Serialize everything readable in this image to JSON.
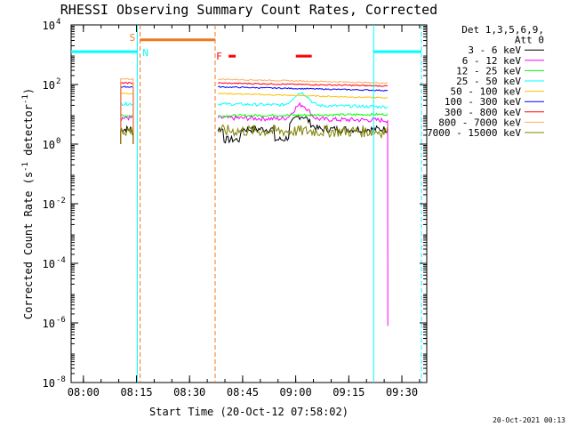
{
  "chart_data": {
    "type": "line",
    "title": "RHESSI Observing Summary Count Rates, Corrected",
    "xlabel": "Start Time (20-Oct-12 07:58:02)",
    "ylabel_parts": [
      "Corrected Count Rate (s",
      "-1",
      " detector",
      "-1",
      ")"
    ],
    "x_unit": "minutes since 07:58:02",
    "xlim": [
      -1.5,
      99
    ],
    "ylog": true,
    "ylim_exp": [
      -8,
      4
    ],
    "x_ticks": [
      {
        "x": 1.97,
        "label": "08:00"
      },
      {
        "x": 16.97,
        "label": "08:15"
      },
      {
        "x": 31.97,
        "label": "08:30"
      },
      {
        "x": 46.97,
        "label": "08:45"
      },
      {
        "x": 61.97,
        "label": "09:00"
      },
      {
        "x": 76.97,
        "label": "09:15"
      },
      {
        "x": 91.97,
        "label": "09:30"
      }
    ],
    "y_ticks": [
      {
        "exp": 4,
        "base": "10",
        "sup": "4"
      },
      {
        "exp": 2,
        "base": "10",
        "sup": "2"
      },
      {
        "exp": 0,
        "base": "10",
        "sup": "0"
      },
      {
        "exp": -2,
        "base": "10",
        "sup": "-2"
      },
      {
        "exp": -4,
        "base": "10",
        "sup": "-4"
      },
      {
        "exp": -6,
        "base": "10",
        "sup": "-6"
      },
      {
        "exp": -8,
        "base": "10",
        "sup": "-8"
      }
    ],
    "legend": {
      "header": [
        "Det 1,3,5,6,9,",
        "Att 0"
      ],
      "placement": "right"
    },
    "segments": [
      [
        12.5,
        16.0
      ],
      [
        40.0,
        88.0
      ]
    ],
    "series": [
      {
        "name": "3 - 6 keV",
        "color": "#000000",
        "level": [
          0.5,
          0.5
        ],
        "peak": {
          "x": 63.5,
          "amp": 1.8,
          "w": 2.5
        },
        "dips": [
          [
            44,
            2.4
          ],
          [
            58,
            2.2
          ]
        ],
        "noise": 0.12
      },
      {
        "name": "6 - 12 keV",
        "color": "#ff00ff",
        "level": [
          0.88,
          0.8
        ],
        "peak": {
          "x": 63.5,
          "amp": 2.0,
          "w": 2.4
        },
        "noise": 0.08
      },
      {
        "name": "12 - 25 keV",
        "color": "#00ff00",
        "level": [
          0.95,
          1.0
        ],
        "noise": 0.04
      },
      {
        "name": "25 - 50 keV",
        "color": "#00ffff",
        "level": [
          1.35,
          1.25
        ],
        "peak": {
          "x": 63.5,
          "amp": 1.6,
          "w": 2.5
        },
        "noise": 0.05
      },
      {
        "name": "50 - 100 keV",
        "color": "#ffc000",
        "level": [
          1.7,
          1.55
        ],
        "noise": 0.02
      },
      {
        "name": "100 - 300 keV",
        "color": "#0000ff",
        "level": [
          1.92,
          1.8
        ],
        "noise": 0.02
      },
      {
        "name": "300 - 800 keV",
        "color": "#ff0000",
        "level": [
          2.05,
          1.95
        ],
        "noise": 0.02
      },
      {
        "name": "800 - 7000 keV",
        "color": "#ffaa66",
        "level": [
          2.18,
          2.05
        ],
        "noise": 0.02
      },
      {
        "name": "7000 - 15000 keV",
        "color": "#808000",
        "level": [
          0.45,
          0.42
        ],
        "noise": 0.2
      }
    ],
    "drop_to_exp": -6.1,
    "drop_at_x": 88.0,
    "markers": {
      "saa": {
        "label": "S",
        "color": "#f07820",
        "x": [
          18.0,
          39.2
        ],
        "exp": 3.5
      },
      "night": {
        "label": "N",
        "color": "#00ffff",
        "ranges": [
          [
            -1.5,
            17.2
          ],
          [
            84.0,
            97.5
          ]
        ],
        "exp": 3.1
      },
      "flare": {
        "label": "F",
        "color": "#ff0000",
        "ranges": [
          [
            43.0,
            45.0
          ],
          [
            62.0,
            66.5
          ]
        ],
        "exp": 2.95
      },
      "vlines": [
        {
          "x": 17.2,
          "color": "#00ffff"
        },
        {
          "x": 18.0,
          "color": "#f07820"
        },
        {
          "x": 39.2,
          "color": "#f07820"
        },
        {
          "x": 84.0,
          "color": "#00ffff"
        },
        {
          "x": 97.5,
          "color": "#00ffff"
        }
      ]
    }
  },
  "footer": {
    "timestamp": "20-Oct-2021 00:13"
  }
}
